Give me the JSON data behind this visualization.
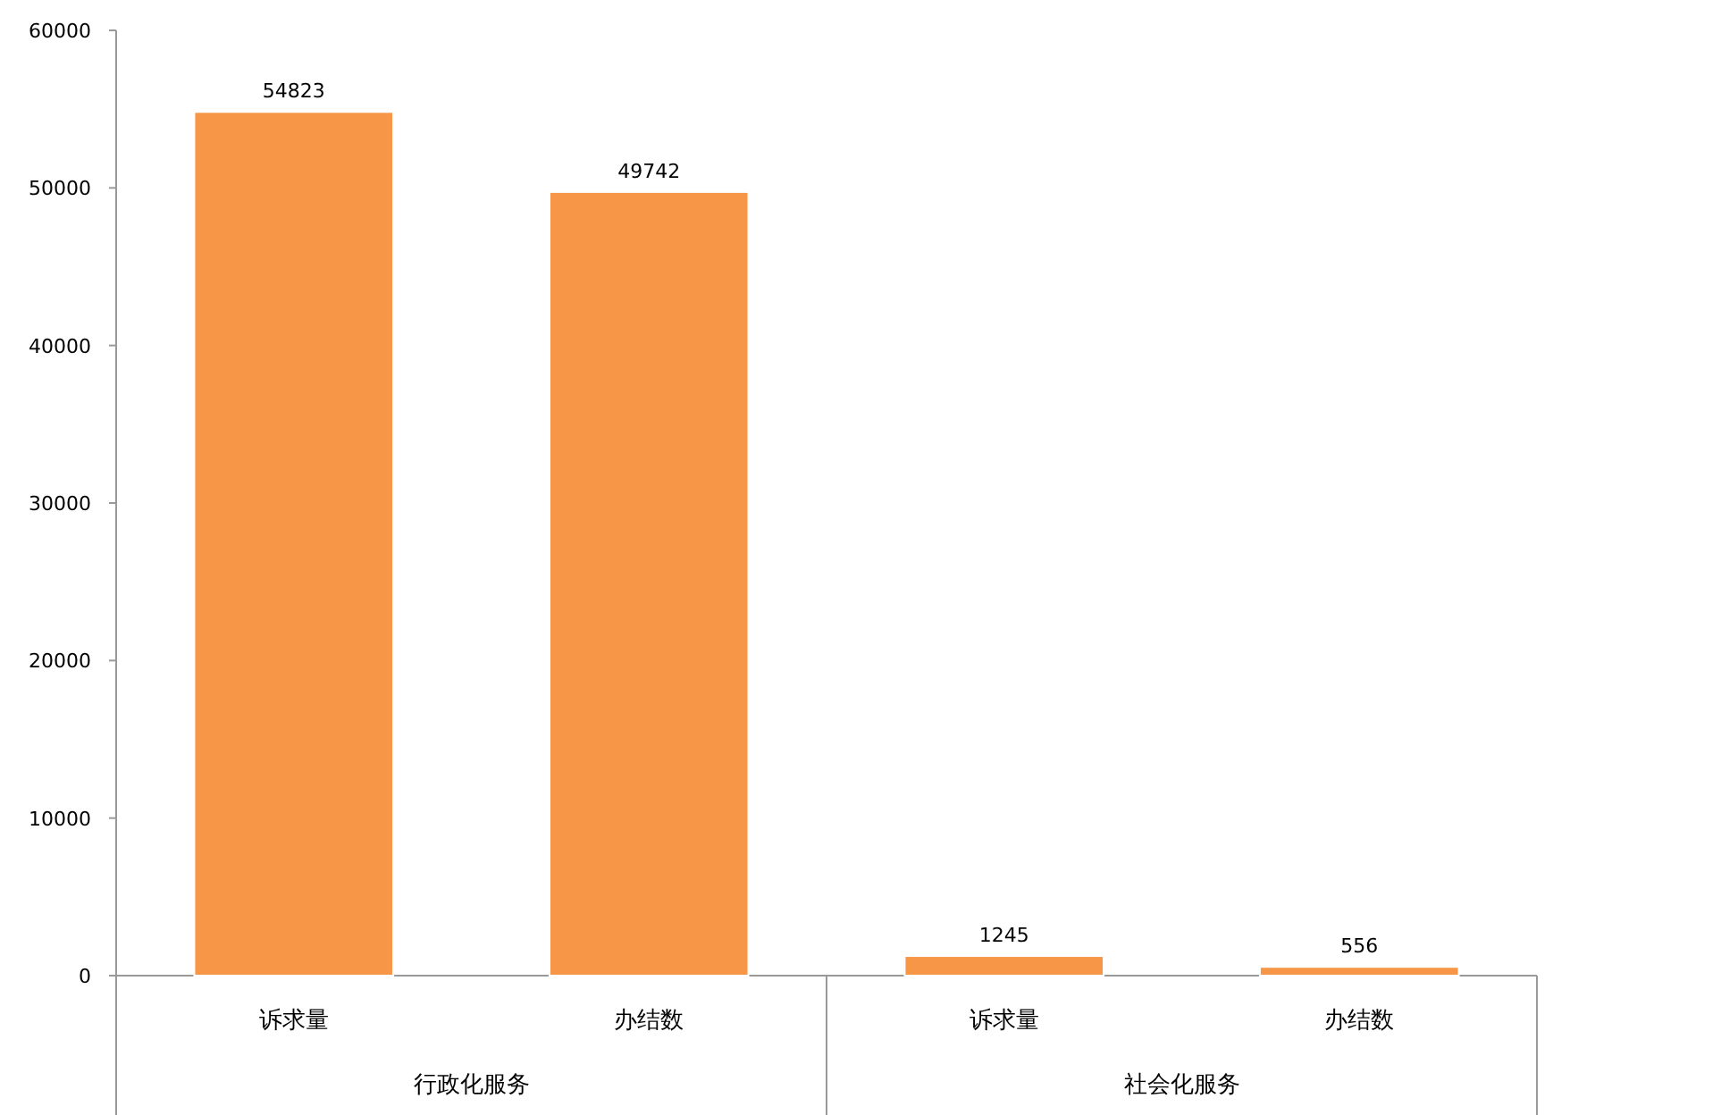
{
  "chart_data": {
    "type": "bar",
    "categories": [
      "诉求量",
      "办结数",
      "诉求量",
      "办结数"
    ],
    "values": [
      54823,
      49742,
      1245,
      556
    ],
    "color": "#f79646",
    "ylim": [
      0,
      60000
    ],
    "yticks": [
      0,
      10000,
      20000,
      30000,
      40000,
      50000,
      60000
    ],
    "data_labels": true,
    "annotations": [
      "行政化服务",
      "社会化服务"
    ]
  }
}
